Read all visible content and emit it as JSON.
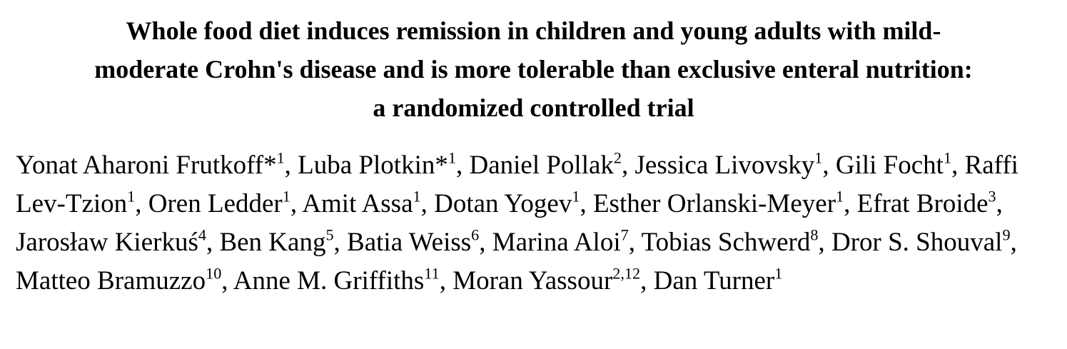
{
  "header": {
    "title_lines": [
      "Whole food diet induces remission in children and young adults with mild-",
      "moderate Crohn's disease and is more tolerable than exclusive enteral nutrition:",
      "a randomized controlled trial"
    ]
  },
  "author_separator": ", ",
  "authors": [
    {
      "name": "Yonat Aharoni Frutkoff*",
      "affiliation": "1"
    },
    {
      "name": "Luba Plotkin*",
      "affiliation": "1"
    },
    {
      "name": "Daniel Pollak",
      "affiliation": "2"
    },
    {
      "name": "Jessica Livovsky",
      "affiliation": "1"
    },
    {
      "name": "Gili Focht",
      "affiliation": "1"
    },
    {
      "name": "Raffi Lev-Tzion",
      "affiliation": "1"
    },
    {
      "name": "Oren Ledder",
      "affiliation": "1"
    },
    {
      "name": "Amit Assa",
      "affiliation": "1"
    },
    {
      "name": "Dotan Yogev",
      "affiliation": "1"
    },
    {
      "name": "Esther Orlanski-Meyer",
      "affiliation": "1"
    },
    {
      "name": "Efrat Broide",
      "affiliation": "3"
    },
    {
      "name": "Jarosław Kierkuś",
      "affiliation": "4"
    },
    {
      "name": "Ben Kang",
      "affiliation": "5"
    },
    {
      "name": "Batia Weiss",
      "affiliation": "6"
    },
    {
      "name": "Marina Aloi",
      "affiliation": "7"
    },
    {
      "name": "Tobias Schwerd",
      "affiliation": "8"
    },
    {
      "name": "Dror S. Shouval",
      "affiliation": "9"
    },
    {
      "name": "Matteo Bramuzzo",
      "affiliation": "10"
    },
    {
      "name": "Anne M. Griffiths",
      "affiliation": "11"
    },
    {
      "name": "Moran Yassour",
      "affiliation": "2,12"
    },
    {
      "name": "Dan Turner",
      "affiliation": "1"
    }
  ]
}
